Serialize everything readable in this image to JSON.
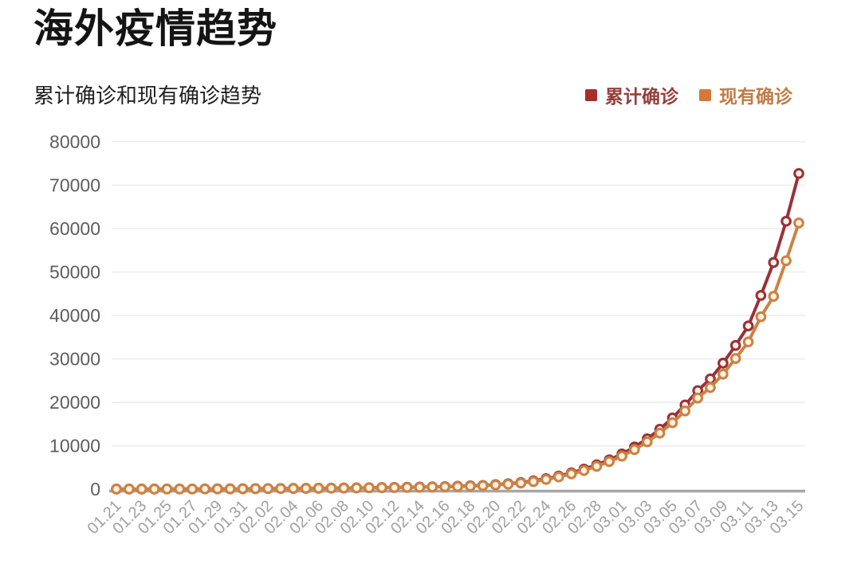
{
  "header": {
    "title": "海外疫情趋势",
    "subtitle": "累计确诊和现有确诊趋势"
  },
  "legend": {
    "items": [
      {
        "label": "累计确诊",
        "swatch_color": "#A52F2B",
        "text_color": "#93403C"
      },
      {
        "label": "现有确诊",
        "swatch_color": "#D2793B",
        "text_color": "#C07C45"
      }
    ]
  },
  "chart_data": {
    "type": "line",
    "title": "海外疫情趋势",
    "subtitle": "累计确诊和现有确诊趋势",
    "x_label": "",
    "y_label": "",
    "x": [
      "01.21",
      "01.22",
      "01.23",
      "01.24",
      "01.25",
      "01.26",
      "01.27",
      "01.28",
      "01.29",
      "01.30",
      "01.31",
      "02.01",
      "02.02",
      "02.03",
      "02.04",
      "02.05",
      "02.06",
      "02.07",
      "02.08",
      "02.09",
      "02.10",
      "02.11",
      "02.12",
      "02.13",
      "02.14",
      "02.15",
      "02.16",
      "02.17",
      "02.18",
      "02.19",
      "02.20",
      "02.21",
      "02.22",
      "02.23",
      "02.24",
      "02.25",
      "02.26",
      "02.27",
      "02.28",
      "02.29",
      "03.01",
      "03.02",
      "03.03",
      "03.04",
      "03.05",
      "03.06",
      "03.07",
      "03.08",
      "03.09",
      "03.10",
      "03.11",
      "03.12",
      "03.13",
      "03.14",
      "03.15"
    ],
    "x_tick_step": 2,
    "series": [
      {
        "name": "累计确诊",
        "color": "#9A3138",
        "marker_fill": "#FCF2E2",
        "values": [
          10,
          14,
          18,
          23,
          28,
          35,
          45,
          56,
          68,
          82,
          100,
          115,
          130,
          148,
          166,
          185,
          205,
          230,
          260,
          295,
          330,
          365,
          400,
          440,
          480,
          530,
          590,
          660,
          750,
          870,
          1030,
          1240,
          1520,
          1900,
          2400,
          3000,
          3750,
          4600,
          5600,
          6750,
          8100,
          9700,
          11600,
          13800,
          16400,
          19400,
          22700,
          25400,
          29000,
          33100,
          37600,
          44600,
          52200,
          61700,
          72700
        ]
      },
      {
        "name": "现有确诊",
        "color": "#CC8243",
        "marker_fill": "#FCF2E2",
        "values": [
          10,
          14,
          18,
          23,
          28,
          35,
          44,
          55,
          67,
          80,
          97,
          112,
          126,
          143,
          160,
          178,
          196,
          220,
          248,
          280,
          312,
          344,
          375,
          412,
          448,
          492,
          546,
          610,
          692,
          800,
          950,
          1140,
          1400,
          1750,
          2230,
          2800,
          3500,
          4300,
          5250,
          6350,
          7600,
          9100,
          10900,
          12900,
          15300,
          18000,
          21000,
          23400,
          26500,
          30100,
          33900,
          39700,
          44400,
          52600,
          61300
        ]
      }
    ],
    "ylim": [
      0,
      80000
    ],
    "yticks": [
      0,
      10000,
      20000,
      30000,
      40000,
      50000,
      60000,
      70000,
      80000
    ],
    "grid": "horizontal",
    "legend_position": "top-right",
    "colors": {
      "grid_line": "#EFEFEF",
      "zero_axis_line": "#A6A6A6",
      "y_tick_label": "#5D5D5D",
      "x_tick_label": "#A0A0A0",
      "background": "#FFFFFF"
    }
  }
}
